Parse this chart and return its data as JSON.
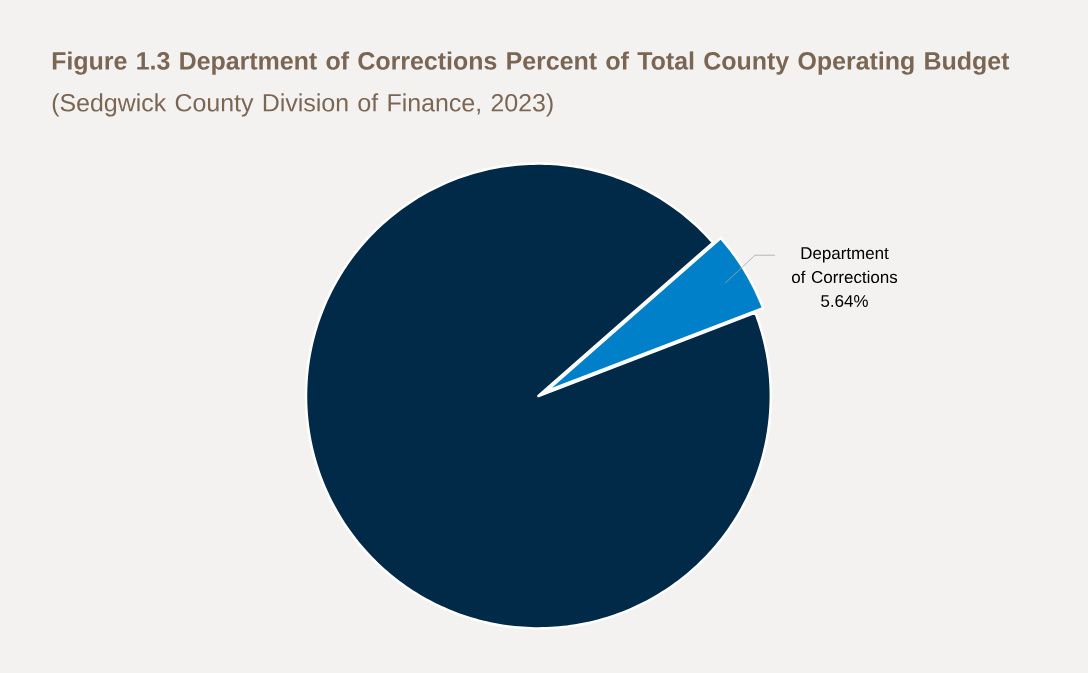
{
  "chart_data": {
    "type": "pie",
    "title": "**Figure 1.3 Department of Corrections Percent of Total County Operating Budget** (Sedgwick County Division of Finance, 2023)",
    "categories": [
      "Department of Corrections",
      null
    ],
    "values": [
      5.64,
      94.36
    ],
    "colors": [
      "#0080c8",
      "#002a48"
    ],
    "value_labels": [
      "5.64%",
      null
    ]
  }
}
